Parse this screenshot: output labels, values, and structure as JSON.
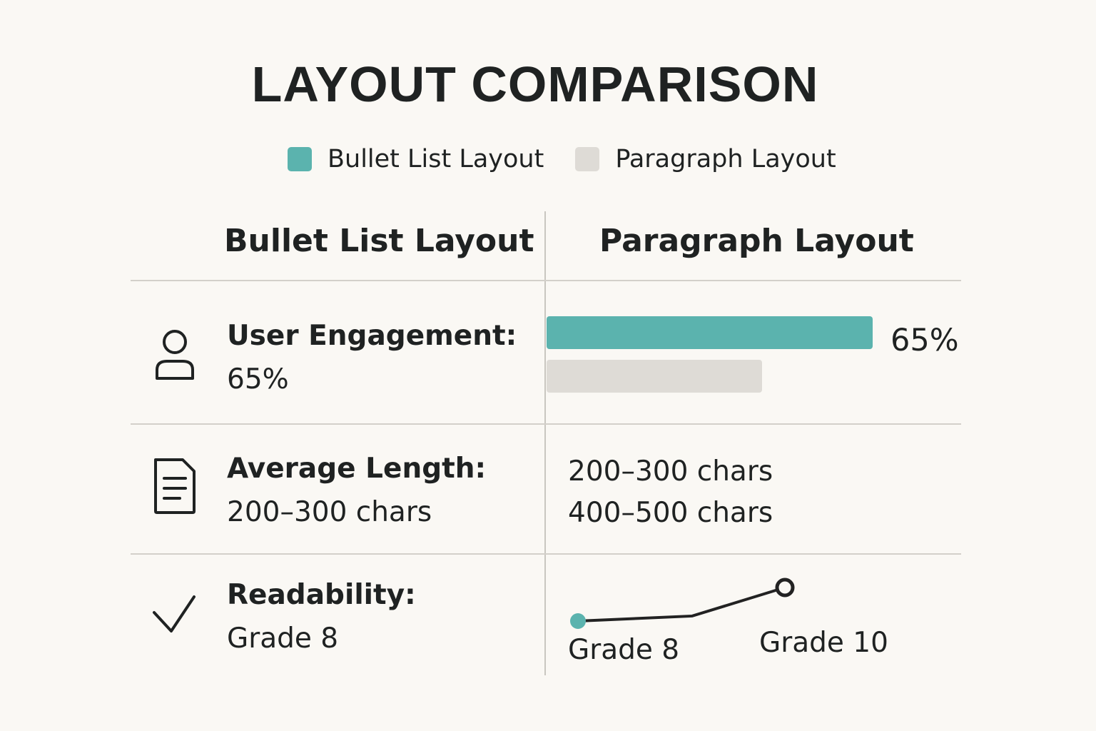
{
  "title": "LAYOUT COMPARISON",
  "colors": {
    "bullet": "#5bb3ae",
    "paragraph": "#dedbd6",
    "line": "#222222"
  },
  "legend": [
    {
      "label": "Bullet List Layout",
      "color": "#5bb3ae"
    },
    {
      "label": "Paragraph Layout",
      "color": "#dedbd6"
    }
  ],
  "columns": {
    "left": "Bullet List Layout",
    "right": "Paragraph Layout"
  },
  "rows": {
    "engagement": {
      "icon": "user-icon",
      "label": "User Engagement:",
      "value": "65%"
    },
    "length": {
      "icon": "document-icon",
      "label": "Average Length:",
      "value": "200–300 chars"
    },
    "readability": {
      "icon": "checkmark-icon",
      "label": "Readability:",
      "value": "Grade 8"
    }
  },
  "chart_data": [
    {
      "type": "bar",
      "series": [
        {
          "name": "Bullet List Layout",
          "value": 65
        },
        {
          "name": "Paragraph Layout",
          "value": 43
        }
      ],
      "data_label": "65%",
      "xlim": [
        0,
        100
      ]
    },
    {
      "type": "table",
      "rows": [
        "200–300 chars",
        "400–500 chars"
      ]
    },
    {
      "type": "line",
      "points": [
        {
          "label": "Grade 8",
          "grade": 8
        },
        {
          "label": "",
          "grade": 8.3
        },
        {
          "label": "Grade 10",
          "grade": 10
        }
      ]
    }
  ]
}
